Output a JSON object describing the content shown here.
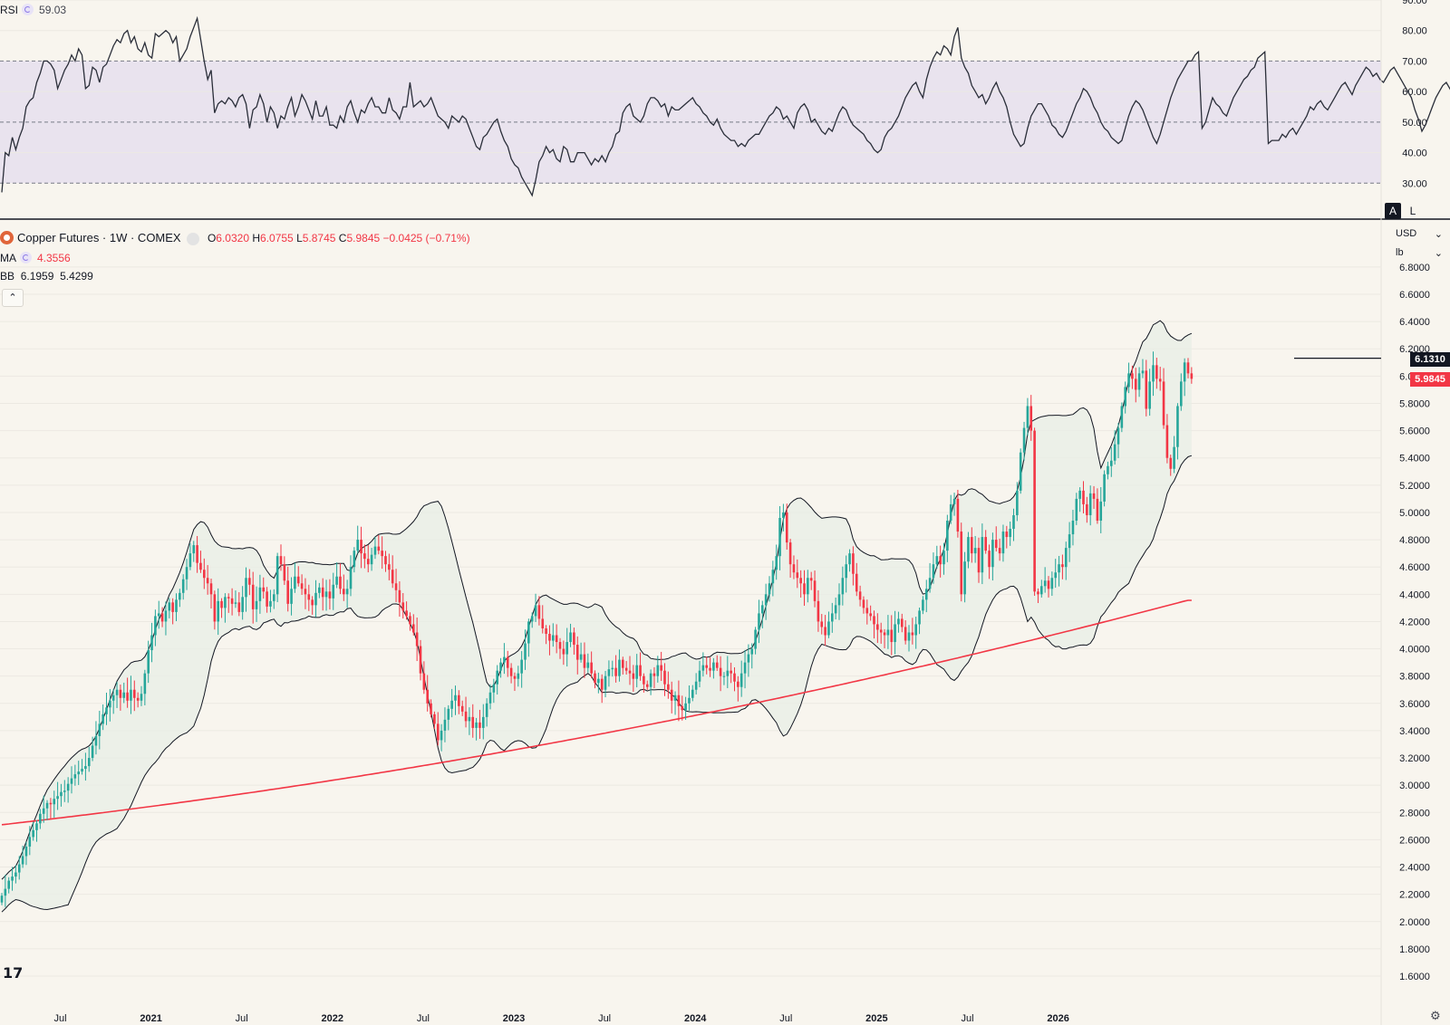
{
  "rsi_legend": {
    "name": "RSI",
    "value": "59.03"
  },
  "symbol_legend": {
    "title": "Copper Futures · 1W · COMEX",
    "o_label": "O",
    "o": "6.0320",
    "h_label": "H",
    "h": "6.0755",
    "l_label": "L",
    "l": "5.8745",
    "c_label": "C",
    "c": "5.9845",
    "change": "−0.0425 (−0.71%)"
  },
  "ma_legend": {
    "name": "MA",
    "value": "4.3556"
  },
  "bb_legend": {
    "name": "BB",
    "upper": "6.1959",
    "lower": "5.4299"
  },
  "toolbar": {
    "currency": "USD",
    "unit": "lb",
    "auto_label": "A",
    "log_label": "L"
  },
  "price_tags": {
    "hline": "6.1310",
    "last": "5.9845"
  },
  "colors": {
    "up": "#26a69a",
    "down": "#f23645",
    "ma": "#f23645",
    "bb": "#131722",
    "rsi": "#2a2e39",
    "rsi_band": "#e9e3ee",
    "bg": "#f8f5ee"
  },
  "chart_data": [
    {
      "type": "line",
      "name": "RSI",
      "ylim": [
        20,
        90
      ],
      "y_ticks": [
        "30.00",
        "40.00",
        "50.00",
        "60.00",
        "70.00",
        "80.00",
        "90.00"
      ],
      "band": [
        30,
        70
      ],
      "midline": 50,
      "x_start": "2020-04-20",
      "x_step_weeks": 1,
      "values": [
        27,
        40,
        39,
        45,
        41,
        45,
        48,
        55,
        57,
        58,
        63,
        66,
        70,
        70,
        69,
        67,
        61,
        64,
        67,
        69,
        72,
        70,
        74,
        72,
        61,
        62,
        68,
        67,
        63,
        68,
        69,
        72,
        75,
        77,
        76,
        79,
        80,
        76,
        78,
        74,
        73,
        76,
        72,
        71,
        79,
        78,
        79,
        80,
        79,
        76,
        78,
        70,
        72,
        74,
        78,
        81,
        84,
        77,
        70,
        64,
        67,
        53,
        56,
        57,
        56,
        58,
        57,
        55,
        58,
        59,
        56,
        48,
        54,
        55,
        59,
        56,
        50,
        55,
        53,
        48,
        52,
        51,
        55,
        58,
        52,
        55,
        59,
        57,
        54,
        51,
        57,
        52,
        52,
        55,
        49,
        49,
        48,
        52,
        50,
        55,
        57,
        53,
        50,
        54,
        53,
        56,
        58,
        55,
        55,
        53,
        53,
        58,
        54,
        53,
        51,
        55,
        55,
        63,
        55,
        56,
        57,
        55,
        56,
        58,
        55,
        52,
        51,
        50,
        48,
        52,
        51,
        50,
        52,
        51,
        48,
        45,
        42,
        41,
        45,
        46,
        48,
        50,
        51,
        47,
        44,
        42,
        38,
        36,
        35,
        32,
        30,
        28,
        26,
        31,
        37,
        39,
        42,
        40,
        41,
        38,
        37,
        42,
        41,
        37,
        37,
        40,
        40,
        40,
        38,
        36,
        38,
        37,
        39,
        37,
        40,
        42,
        46,
        47,
        53,
        55,
        56,
        52,
        51,
        50,
        52,
        56,
        58,
        58,
        57,
        55,
        56,
        52,
        55,
        54,
        54,
        55,
        56,
        57,
        58,
        56,
        55,
        53,
        52,
        50,
        49,
        51,
        48,
        46,
        45,
        44,
        44,
        42,
        43,
        42,
        44,
        45,
        46,
        46,
        48,
        50,
        52,
        53,
        55,
        54,
        51,
        52,
        50,
        48,
        53,
        55,
        56,
        54,
        50,
        51,
        49,
        47,
        46,
        48,
        47,
        50,
        53,
        55,
        54,
        51,
        49,
        48,
        47,
        46,
        44,
        43,
        41,
        40,
        41,
        45,
        47,
        48,
        50,
        52,
        55,
        58,
        60,
        62,
        63,
        60,
        58,
        64,
        68,
        71,
        73,
        72,
        75,
        74,
        72,
        78,
        81,
        71,
        68,
        66,
        62,
        60,
        58,
        59,
        56,
        58,
        61,
        63,
        60,
        58,
        55,
        50,
        46,
        44,
        42,
        43,
        48,
        52,
        54,
        56,
        56,
        54,
        52,
        49,
        48,
        46,
        45,
        47,
        50,
        53,
        56,
        58,
        61,
        60,
        58,
        55,
        53,
        50,
        48,
        47,
        45,
        44,
        43,
        44,
        48,
        52,
        55,
        57,
        56,
        54,
        51,
        48,
        45,
        43,
        46,
        50,
        54,
        58,
        61,
        64,
        66,
        68,
        70,
        70,
        72,
        73,
        48,
        50,
        54,
        58,
        56,
        55,
        53,
        52,
        55,
        58,
        60,
        62,
        64,
        65,
        67,
        68,
        71,
        72,
        73,
        43,
        44,
        44,
        44,
        46,
        45,
        47,
        48,
        46,
        48,
        50,
        52,
        55,
        54,
        56,
        57,
        55,
        54,
        56,
        58,
        60,
        62,
        63,
        61,
        59,
        62,
        64,
        66,
        68,
        67,
        65,
        66,
        64,
        63,
        65,
        67,
        68,
        66,
        64,
        62,
        60,
        58,
        54,
        51,
        47,
        49,
        52,
        55,
        58,
        60,
        62,
        63,
        61,
        59
      ]
    },
    {
      "type": "candlestick",
      "name": "Copper Futures",
      "ylim": [
        1.55,
        6.8
      ],
      "y_ticks": [
        "1.6000",
        "1.8000",
        "2.0000",
        "2.2000",
        "2.4000",
        "2.6000",
        "2.8000",
        "3.0000",
        "3.2000",
        "3.4000",
        "3.6000",
        "3.8000",
        "4.0000",
        "4.2000",
        "4.4000",
        "4.6000",
        "4.8000",
        "5.0000",
        "5.2000",
        "5.4000",
        "5.6000",
        "5.8000",
        "6.0000",
        "6.2000",
        "6.4000",
        "6.6000",
        "6.8000"
      ],
      "x_ticks": [
        "Jul",
        "2021",
        "Jul",
        "2022",
        "Jul",
        "2023",
        "Jul",
        "2024",
        "Jul",
        "2025",
        "Jul",
        "2026"
      ],
      "x_start": "2020-04-20",
      "x_step_weeks": 1,
      "closes": [
        2.19,
        2.24,
        2.3,
        2.33,
        2.36,
        2.42,
        2.48,
        2.55,
        2.62,
        2.67,
        2.72,
        2.79,
        2.83,
        2.87,
        2.86,
        2.9,
        2.92,
        2.95,
        2.96,
        3.01,
        3.05,
        3.08,
        3.1,
        3.12,
        3.14,
        3.2,
        3.29,
        3.36,
        3.45,
        3.52,
        3.57,
        3.62,
        3.66,
        3.7,
        3.64,
        3.68,
        3.62,
        3.7,
        3.64,
        3.62,
        3.67,
        3.82,
        3.99,
        4.1,
        4.24,
        4.26,
        4.2,
        4.28,
        4.34,
        4.27,
        4.36,
        4.41,
        4.51,
        4.6,
        4.7,
        4.76,
        4.63,
        4.58,
        4.52,
        4.48,
        4.4,
        4.2,
        4.35,
        4.3,
        4.38,
        4.37,
        4.33,
        4.34,
        4.27,
        4.38,
        4.52,
        4.47,
        4.29,
        4.35,
        4.45,
        4.42,
        4.31,
        4.35,
        4.4,
        4.68,
        4.62,
        4.5,
        4.33,
        4.44,
        4.53,
        4.48,
        4.44,
        4.4,
        4.36,
        4.32,
        4.41,
        4.45,
        4.38,
        4.42,
        4.37,
        4.47,
        4.53,
        4.44,
        4.4,
        4.44,
        4.6,
        4.72,
        4.8,
        4.7,
        4.66,
        4.62,
        4.69,
        4.75,
        4.72,
        4.68,
        4.62,
        4.58,
        4.48,
        4.43,
        4.34,
        4.28,
        4.24,
        4.18,
        4.12,
        4.02,
        3.82,
        3.7,
        3.6,
        3.52,
        3.45,
        3.33,
        3.4,
        3.48,
        3.56,
        3.62,
        3.66,
        3.58,
        3.54,
        3.47,
        3.5,
        3.42,
        3.46,
        3.42,
        3.5,
        3.6,
        3.68,
        3.74,
        3.84,
        3.9,
        3.94,
        3.86,
        3.8,
        3.78,
        3.82,
        3.92,
        4.04,
        4.2,
        4.24,
        4.32,
        4.22,
        4.15,
        4.11,
        4.06,
        4.1,
        4.05,
        4.0,
        3.96,
        4.05,
        4.12,
        4.03,
        3.92,
        3.96,
        3.86,
        3.9,
        3.82,
        3.75,
        3.78,
        3.7,
        3.8,
        3.85,
        3.86,
        3.8,
        3.92,
        3.86,
        3.84,
        3.82,
        3.78,
        3.88,
        3.8,
        3.74,
        3.72,
        3.82,
        3.8,
        3.88,
        3.84,
        3.74,
        3.7,
        3.62,
        3.66,
        3.58,
        3.55,
        3.6,
        3.64,
        3.7,
        3.76,
        3.84,
        3.88,
        3.86,
        3.84,
        3.9,
        3.86,
        3.8,
        3.8,
        3.84,
        3.82,
        3.76,
        3.72,
        3.82,
        3.9,
        3.96,
        4.0,
        4.14,
        4.26,
        4.32,
        4.4,
        4.48,
        4.58,
        4.68,
        4.96,
        5.0,
        4.78,
        4.62,
        4.56,
        4.52,
        4.48,
        4.4,
        4.52,
        4.5,
        4.35,
        4.2,
        4.16,
        4.1,
        4.2,
        4.26,
        4.32,
        4.4,
        4.52,
        4.62,
        4.7,
        4.55,
        4.42,
        4.36,
        4.3,
        4.26,
        4.24,
        4.18,
        4.14,
        4.12,
        4.1,
        4.14,
        4.05,
        4.18,
        4.22,
        4.16,
        4.06,
        4.12,
        4.1,
        4.18,
        4.28,
        4.36,
        4.44,
        4.52,
        4.62,
        4.68,
        4.62,
        4.72,
        4.94,
        5.06,
        5.1,
        4.86,
        4.4,
        4.64,
        4.82,
        4.7,
        4.74,
        4.56,
        4.82,
        4.72,
        4.6,
        4.8,
        4.74,
        4.7,
        4.86,
        4.82,
        4.88,
        4.98,
        5.16,
        5.44,
        5.62,
        5.78,
        5.6,
        4.42,
        4.4,
        4.46,
        4.5,
        4.44,
        4.52,
        4.56,
        4.62,
        4.6,
        4.74,
        4.84,
        4.94,
        5.1,
        5.16,
        5.06,
        4.98,
        5.14,
        5.1,
        4.94,
        5.08,
        5.28,
        5.34,
        5.38,
        5.5,
        5.62,
        5.78,
        5.92,
        6.02,
        5.98,
        5.9,
        6.02,
        6.04,
        5.76,
        5.96,
        6.08,
        5.98,
        5.96,
        5.64,
        5.4,
        5.32,
        5.48,
        5.78,
        5.96,
        6.1,
        6.02,
        5.98
      ],
      "moving_average": {
        "name": "MA",
        "start": 2.71,
        "end": 4.3556
      }
    }
  ]
}
